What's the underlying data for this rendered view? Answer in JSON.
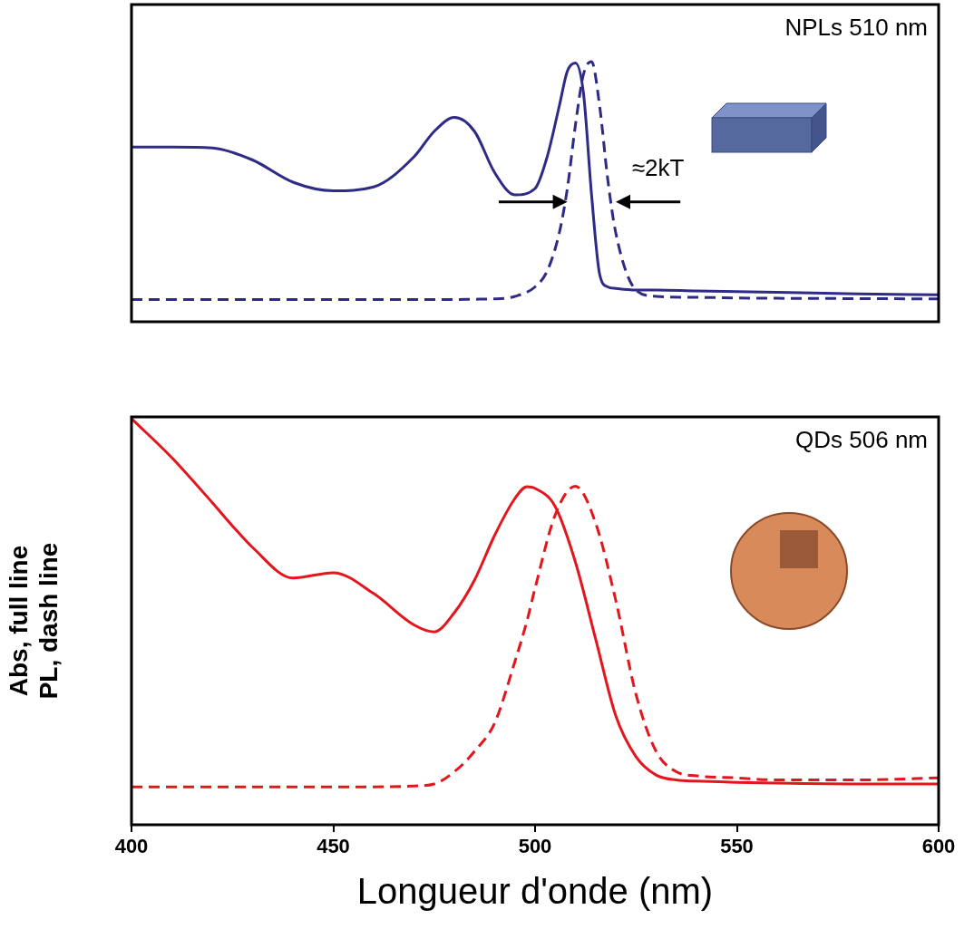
{
  "chart_data": [
    {
      "type": "line",
      "title": "NPLs 510 nm",
      "x": [
        400,
        410,
        420,
        430,
        440,
        450,
        460,
        470,
        475,
        480,
        485,
        490,
        495,
        500,
        503,
        506,
        508,
        510,
        512,
        514,
        516,
        518,
        520,
        525,
        530,
        540,
        550,
        560,
        580,
        600
      ],
      "series": [
        {
          "color": "#2e2b87",
          "line_style": "solid",
          "values": [
            0.551,
            0.551,
            0.548,
            0.51,
            0.44,
            0.413,
            0.425,
            0.52,
            0.6,
            0.644,
            0.6,
            0.47,
            0.4,
            0.42,
            0.52,
            0.68,
            0.79,
            0.816,
            0.72,
            0.4,
            0.15,
            0.11,
            0.105,
            0.1,
            0.1,
            0.097,
            0.095,
            0.093,
            0.088,
            0.085
          ]
        },
        {
          "color": "#2e2b87",
          "line_style": "dashed",
          "values": [
            0.07,
            0.07,
            0.07,
            0.07,
            0.07,
            0.07,
            0.07,
            0.07,
            0.07,
            0.07,
            0.071,
            0.072,
            0.08,
            0.11,
            0.16,
            0.28,
            0.42,
            0.62,
            0.78,
            0.82,
            0.68,
            0.45,
            0.28,
            0.1,
            0.08,
            0.077,
            0.075,
            0.074,
            0.073,
            0.072
          ]
        }
      ],
      "xlim": [
        400,
        600
      ],
      "xticks": [],
      "ylim": [
        0,
        1
      ],
      "yticks": [],
      "tick_labels": false,
      "grid": false,
      "annotations": [
        {
          "text": "≈2kT",
          "x": 524,
          "y": 0.48
        }
      ],
      "arrows": [
        {
          "x": [
            491,
            508
          ],
          "y": 0.378
        },
        {
          "x": [
            536,
            520
          ],
          "y": 0.378
        }
      ]
    },
    {
      "type": "line",
      "title": "QDs 506 nm",
      "x_label": "Longueur d'onde (nm)",
      "y_label": [
        "Abs, full line",
        "PL, dash line"
      ],
      "x": [
        400,
        410,
        420,
        425,
        430,
        440,
        450,
        460,
        470,
        475,
        480,
        485,
        490,
        495,
        498,
        500,
        505,
        510,
        515,
        520,
        525,
        530,
        535,
        540,
        550,
        560,
        580,
        600
      ],
      "series": [
        {
          "color": "#e3161d",
          "line_style": "solid",
          "values": [
            0.996,
            0.9,
            0.79,
            0.733,
            0.68,
            0.605,
            0.618,
            0.567,
            0.49,
            0.473,
            0.52,
            0.6,
            0.71,
            0.8,
            0.829,
            0.825,
            0.78,
            0.644,
            0.456,
            0.267,
            0.167,
            0.122,
            0.11,
            0.107,
            0.104,
            0.102,
            0.1,
            0.1
          ]
        },
        {
          "color": "#e3161d",
          "line_style": "dashed",
          "values": [
            0.093,
            0.093,
            0.093,
            0.093,
            0.093,
            0.093,
            0.093,
            0.093,
            0.095,
            0.1,
            0.13,
            0.18,
            0.25,
            0.4,
            0.5,
            0.58,
            0.76,
            0.83,
            0.74,
            0.55,
            0.32,
            0.18,
            0.13,
            0.12,
            0.115,
            0.11,
            0.11,
            0.115
          ]
        }
      ],
      "xlim": [
        400,
        600
      ],
      "xticks": [
        400,
        450,
        500,
        550,
        600
      ],
      "ylim": [
        0,
        1
      ],
      "yticks": [],
      "tick_labels": "x",
      "grid": false
    }
  ]
}
